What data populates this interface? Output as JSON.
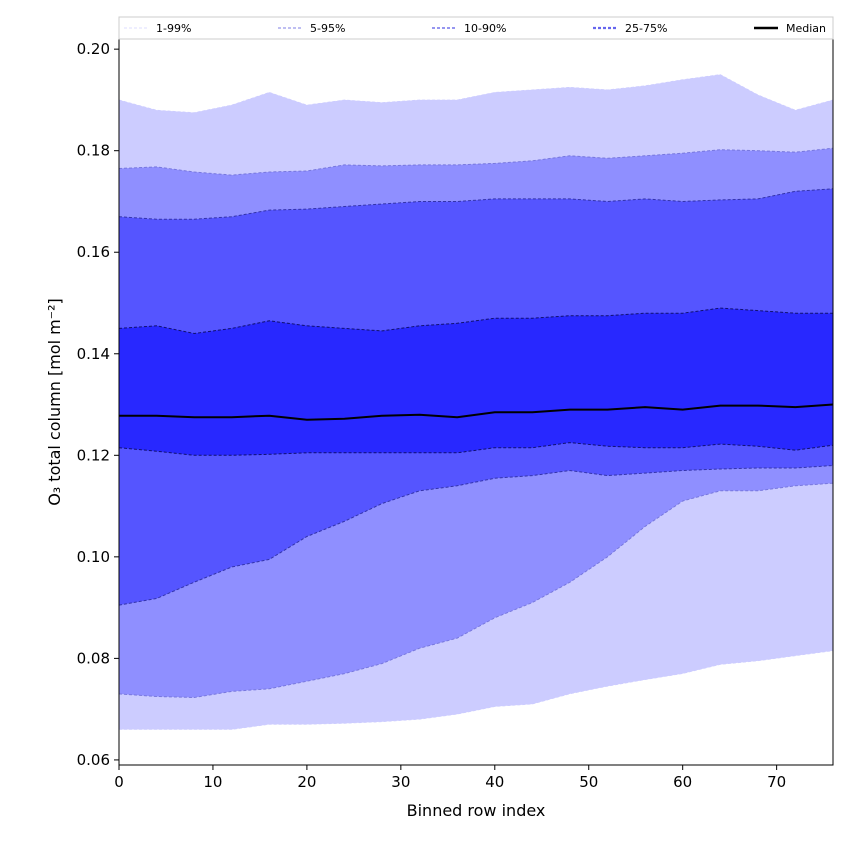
{
  "chart_data": {
    "type": "area",
    "title": "",
    "xlabel": "Binned row index",
    "ylabel": "O₃ total column [mol m⁻²]",
    "xlim": [
      0,
      76
    ],
    "ylim": [
      0.059,
      0.202
    ],
    "xticks": [
      0,
      10,
      20,
      30,
      40,
      50,
      60,
      70
    ],
    "yticks": [
      0.06,
      0.08,
      0.1,
      0.12,
      0.14,
      0.16,
      0.18,
      0.2
    ],
    "ytick_labels": [
      "0.06",
      "0.08",
      "0.10",
      "0.12",
      "0.14",
      "0.16",
      "0.18",
      "0.20"
    ],
    "grid": false,
    "legend_position": "top, above plot",
    "legend": [
      "1-99%",
      "5-95%",
      "10-90%",
      "25-75%",
      "Median"
    ],
    "x": [
      0,
      4,
      8,
      12,
      16,
      20,
      24,
      28,
      32,
      36,
      40,
      44,
      48,
      52,
      56,
      60,
      64,
      68,
      72,
      76
    ],
    "series": {
      "p1": [
        0.066,
        0.066,
        0.066,
        0.066,
        0.067,
        0.067,
        0.0672,
        0.0675,
        0.068,
        0.069,
        0.0705,
        0.071,
        0.073,
        0.0745,
        0.0758,
        0.077,
        0.0788,
        0.0795,
        0.0805,
        0.0815
      ],
      "p5": [
        0.073,
        0.0725,
        0.0723,
        0.0735,
        0.074,
        0.0755,
        0.077,
        0.079,
        0.082,
        0.084,
        0.088,
        0.091,
        0.095,
        0.1,
        0.106,
        0.111,
        0.113,
        0.113,
        0.114,
        0.1145
      ],
      "p10": [
        0.0905,
        0.0918,
        0.095,
        0.098,
        0.0995,
        0.104,
        0.107,
        0.1105,
        0.113,
        0.114,
        0.1155,
        0.116,
        0.117,
        0.116,
        0.1165,
        0.117,
        0.1173,
        0.1175,
        0.1175,
        0.118
      ],
      "p25": [
        0.1215,
        0.1208,
        0.12,
        0.12,
        0.1202,
        0.1205,
        0.1205,
        0.1205,
        0.1205,
        0.1205,
        0.1215,
        0.1215,
        0.1225,
        0.1218,
        0.1215,
        0.1215,
        0.1222,
        0.1218,
        0.121,
        0.122
      ],
      "median": [
        0.1278,
        0.1278,
        0.1275,
        0.1275,
        0.1278,
        0.127,
        0.1272,
        0.1278,
        0.128,
        0.1275,
        0.1285,
        0.1285,
        0.129,
        0.129,
        0.1295,
        0.129,
        0.1298,
        0.1298,
        0.1295,
        0.13
      ],
      "p75": [
        0.145,
        0.1455,
        0.144,
        0.145,
        0.1465,
        0.1455,
        0.145,
        0.1445,
        0.1455,
        0.146,
        0.147,
        0.147,
        0.1475,
        0.1475,
        0.148,
        0.148,
        0.149,
        0.1485,
        0.148,
        0.148
      ],
      "p90": [
        0.167,
        0.1665,
        0.1665,
        0.167,
        0.1683,
        0.1685,
        0.169,
        0.1695,
        0.17,
        0.17,
        0.1705,
        0.1705,
        0.1705,
        0.17,
        0.1705,
        0.17,
        0.1703,
        0.1705,
        0.172,
        0.1725
      ],
      "p95": [
        0.1765,
        0.1768,
        0.1758,
        0.1752,
        0.1758,
        0.176,
        0.1772,
        0.177,
        0.1772,
        0.1772,
        0.1775,
        0.178,
        0.179,
        0.1785,
        0.179,
        0.1795,
        0.1802,
        0.18,
        0.1797,
        0.1805
      ],
      "p99": [
        0.19,
        0.188,
        0.1875,
        0.189,
        0.1915,
        0.189,
        0.19,
        0.1895,
        0.19,
        0.19,
        0.1915,
        0.192,
        0.1925,
        0.192,
        0.1928,
        0.194,
        0.195,
        0.191,
        0.188,
        0.19
      ]
    },
    "bands": [
      {
        "name": "1-99%",
        "lower": "p1",
        "upper": "p99",
        "color": "#ccccff",
        "edge": "#ccccff"
      },
      {
        "name": "5-95%",
        "lower": "p5",
        "upper": "p95",
        "color": "#8f8fff",
        "edge": "#7777dd"
      },
      {
        "name": "10-90%",
        "lower": "p10",
        "upper": "p90",
        "color": "#5555ff",
        "edge": "#3333aa"
      },
      {
        "name": "25-75%",
        "lower": "p25",
        "upper": "p75",
        "color": "#2828ff",
        "edge": "#101070"
      }
    ],
    "legend_line_colors": [
      "#ddddff",
      "#aaaaee",
      "#8888ee",
      "#6666ee",
      "#000000"
    ],
    "median_color": "#000000"
  }
}
